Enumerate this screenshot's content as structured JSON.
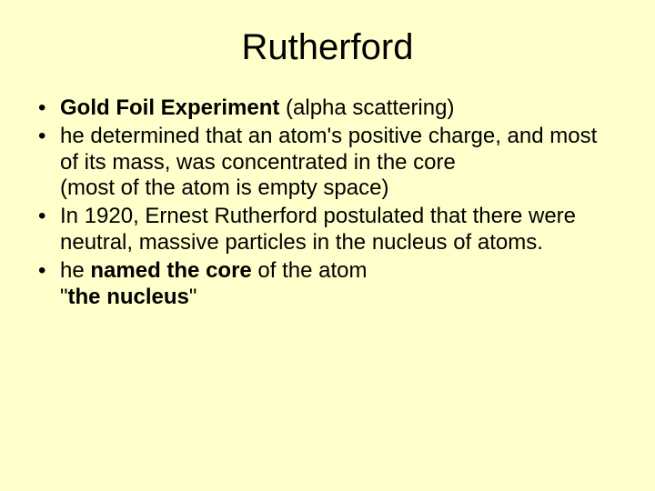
{
  "background_color": "#ffffcc",
  "text_color": "#000000",
  "title": {
    "text": "Rutherford",
    "fontsize": 40
  },
  "body_fontsize": 24,
  "bullets": [
    {
      "parts": [
        {
          "text": "Gold Foil Experiment",
          "bold": true
        },
        {
          "text": " (alpha scattering)",
          "bold": false
        }
      ]
    },
    {
      "parts": [
        {
          "text": "he determined that an atom's positive charge, and most of its mass, was concentrated in the core",
          "bold": false
        }
      ],
      "sublines": [
        {
          "parts": [
            {
              "text": "(most of the atom is empty space)",
              "bold": false
            }
          ]
        }
      ]
    },
    {
      "parts": [
        {
          "text": "In 1920, Ernest Rutherford postulated that there were neutral, massive particles in the nucleus of atoms.",
          "bold": false
        }
      ]
    },
    {
      "parts": [
        {
          "text": "he ",
          "bold": false
        },
        {
          "text": "named the core",
          "bold": true
        },
        {
          "text": " of the atom",
          "bold": false
        }
      ],
      "sublines": [
        {
          "parts": [
            {
              "text": "\"",
              "bold": false
            },
            {
              "text": "the nucleus",
              "bold": true
            },
            {
              "text": "\"",
              "bold": false
            }
          ]
        }
      ]
    }
  ]
}
